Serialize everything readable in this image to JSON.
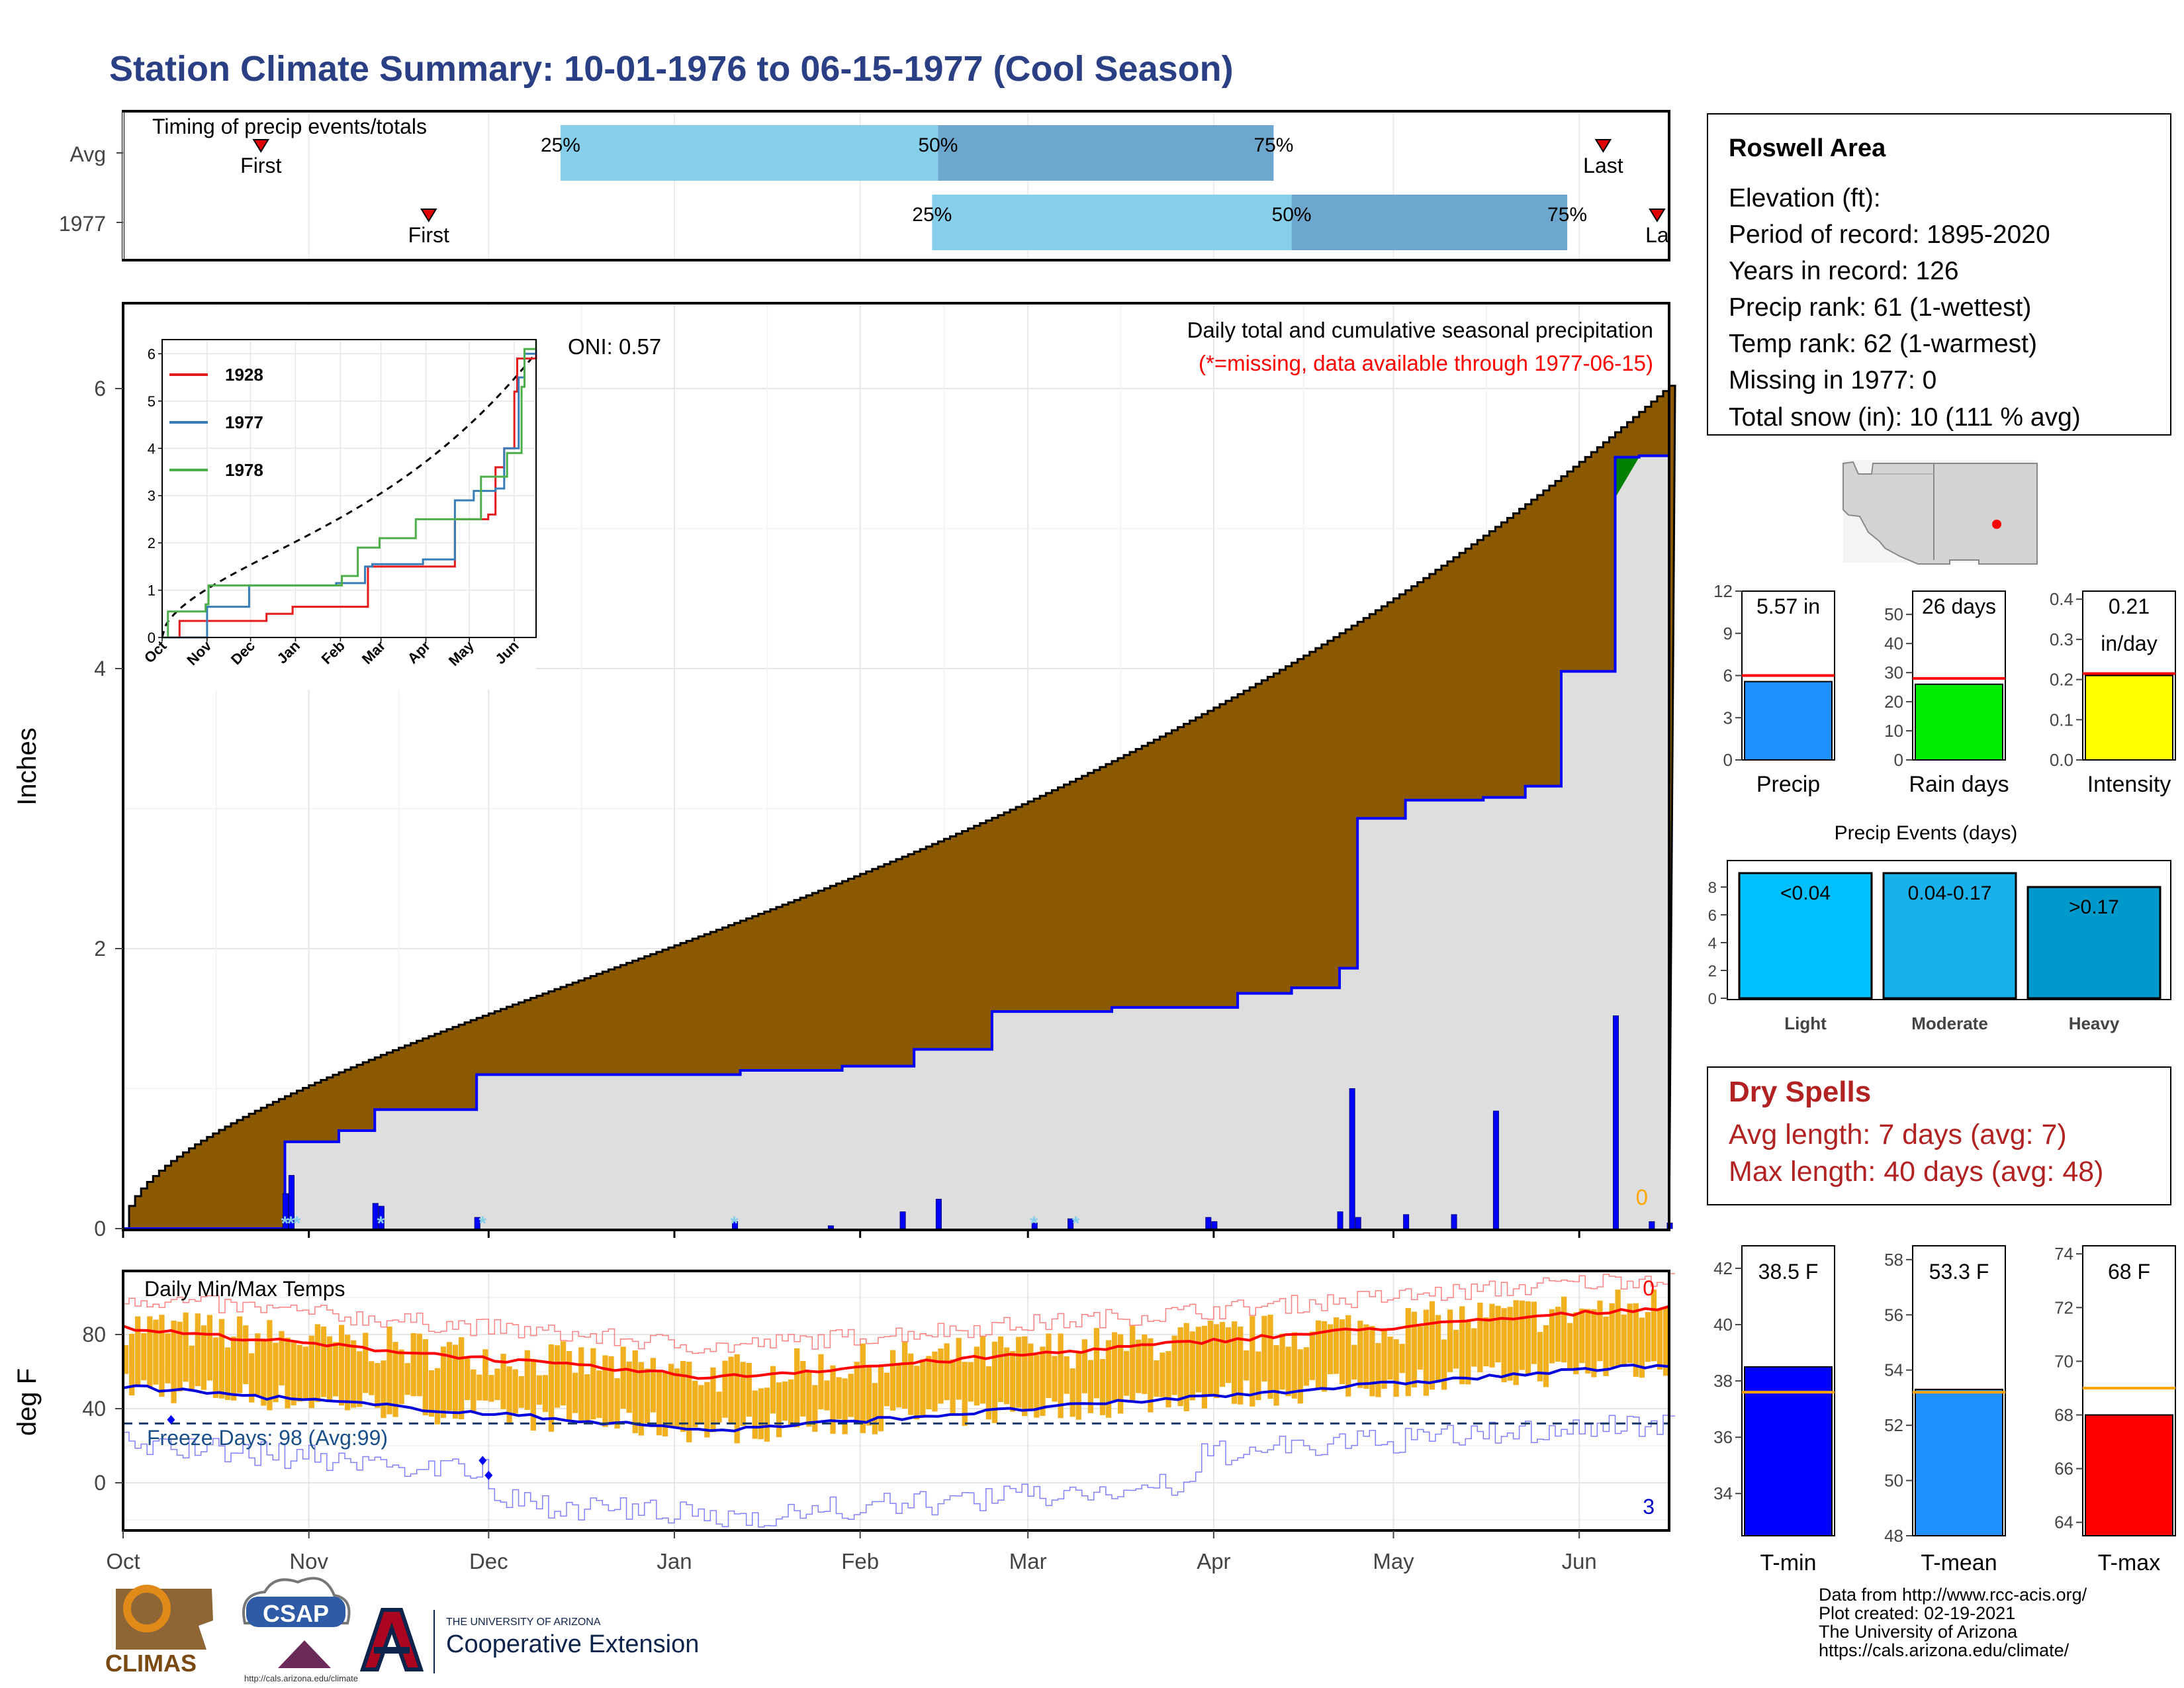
{
  "title": "Station Climate Summary: 10-01-1976 to 06-15-1977 (Cool Season)",
  "timing": {
    "title": "Timing of precip events/totals",
    "rows": [
      {
        "label": "Avg",
        "first": "Oct 24",
        "p25": "Dec 13",
        "p50": "Feb 14",
        "p75": "Apr 11",
        "last": "Jun 5",
        "first_label": "First",
        "p25_label": "25%",
        "p50_label": "50%",
        "p75_label": "75%",
        "last_label": "Last"
      },
      {
        "label": "1977",
        "first": "Nov 21",
        "p25": "Feb 13",
        "p50": "Apr 14",
        "p75": "May 30",
        "last": "Jun 14",
        "first_label": "First",
        "p25_label": "25%",
        "p50_label": "50%",
        "p75_label": "75%",
        "last_label": "La"
      }
    ],
    "colors": {
      "light": "#87ceeb",
      "dark": "#6ea7cd",
      "marker": "#e00000"
    }
  },
  "precip_panel": {
    "ylabel": "Inches",
    "oni": "ONI: 0.57",
    "note1": "Daily total and cumulative seasonal precipitation",
    "note2": "(*=missing, data available through 1977-06-15)",
    "missing_count": "0",
    "yticks": [
      "0",
      "2",
      "4",
      "6"
    ],
    "colors": {
      "deficit": "#8b5a00",
      "surplus": "#008000",
      "observed_fill": "#dedede",
      "line": "#0000ff",
      "snow": "#87ceeb"
    }
  },
  "inset": {
    "xticks": [
      "Oct",
      "Nov",
      "Dec",
      "Jan",
      "Feb",
      "Mar",
      "Apr",
      "May",
      "Jun"
    ],
    "yticks": [
      "0",
      "1",
      "2",
      "3",
      "4",
      "5",
      "6"
    ],
    "legend": [
      {
        "label": "1928",
        "color": "#e41a1c"
      },
      {
        "label": "1977",
        "color": "#377eb8"
      },
      {
        "label": "1978",
        "color": "#4daf4a"
      }
    ]
  },
  "temp_panel": {
    "title": "Daily Min/Max Temps",
    "ylabel": "deg F",
    "freeze": "Freeze Days: 98 (Avg:99)",
    "count_hot": "0",
    "count_cold": "3",
    "yticks": [
      "0",
      "40",
      "80"
    ],
    "colors": {
      "bars": "#f0b020",
      "max_avg": "#ff0000",
      "min_avg": "#0000dd",
      "record_high": "#ff8080",
      "record_low": "#8080ff",
      "freeze": "#1a3a6a"
    }
  },
  "xaxis": [
    "Oct",
    "Nov",
    "Dec",
    "Jan",
    "Feb",
    "Mar",
    "Apr",
    "May",
    "Jun"
  ],
  "info_box": {
    "station": "Roswell Area",
    "lines": [
      "Elevation (ft):",
      "Period of record: 1895-2020",
      "Years in record: 126",
      "Precip rank: 61 (1-wettest)",
      "Temp rank: 62 (1-warmest)",
      "Missing in 1977: 0",
      "Total snow (in): 10 (111 % avg)"
    ]
  },
  "mini_bars": [
    {
      "label": "Precip",
      "value_label": "5.57 in",
      "value": 5.57,
      "avg": 6.0,
      "ymin": 0,
      "ymax": 12,
      "yticks": [
        "0",
        "3",
        "6",
        "9",
        "12"
      ],
      "tickvals": [
        0,
        3,
        6,
        9,
        12
      ],
      "color": "#1e90ff",
      "avg_color": "#ff0000"
    },
    {
      "label": "Rain days",
      "value_label": "26 days",
      "value": 26,
      "avg": 28,
      "ymin": 0,
      "ymax": 58,
      "yticks": [
        "0",
        "10",
        "20",
        "30",
        "40",
        "50"
      ],
      "tickvals": [
        0,
        10,
        20,
        30,
        40,
        50
      ],
      "color": "#00ee00",
      "avg_color": "#ff0000"
    },
    {
      "label": "Intensity",
      "value_label": "0.21",
      "value_label2": "in/day",
      "value": 0.21,
      "avg": 0.215,
      "ymin": 0,
      "ymax": 0.42,
      "yticks": [
        "0.0",
        "0.1",
        "0.2",
        "0.3",
        "0.4"
      ],
      "tickvals": [
        0,
        0.1,
        0.2,
        0.3,
        0.4
      ],
      "color": "#ffff00",
      "avg_color": "#ff0000"
    }
  ],
  "events": {
    "title": "Precip Events (days)",
    "yticks": [
      "0",
      "2",
      "4",
      "6",
      "8"
    ],
    "bars": [
      {
        "label": "Light",
        "value_label": "<0.04",
        "value": 9,
        "color": "#00bfff"
      },
      {
        "label": "Moderate",
        "value_label": "0.04-0.17",
        "value": 9,
        "color": "#1ab0ea"
      },
      {
        "label": "Heavy",
        "value_label": ">0.17",
        "value": 8,
        "color": "#0099cc"
      }
    ]
  },
  "dry_spells": {
    "title": "Dry Spells",
    "avg": "Avg length: 7 days (avg: 7)",
    "max": "Max length: 40 days (avg: 48)"
  },
  "temp_bars": [
    {
      "label": "T-min",
      "value_label": "38.5 F",
      "value": 38.5,
      "avg": 37.6,
      "ymin": 32.5,
      "ymax": 42.8,
      "yticks": [
        "34",
        "36",
        "38",
        "40",
        "42"
      ],
      "tickvals": [
        34,
        36,
        38,
        40,
        42
      ],
      "color": "#0000ff"
    },
    {
      "label": "T-mean",
      "value_label": "53.3 F",
      "value": 53.3,
      "avg": 53.2,
      "ymin": 48,
      "ymax": 58.5,
      "yticks": [
        "48",
        "50",
        "52",
        "54",
        "56",
        "58"
      ],
      "tickvals": [
        48,
        50,
        52,
        54,
        56,
        58
      ],
      "color": "#1e90ff"
    },
    {
      "label": "T-max",
      "value_label": "68 F",
      "value": 68,
      "avg": 69,
      "ymin": 63.5,
      "ymax": 74.3,
      "yticks": [
        "64",
        "66",
        "68",
        "70",
        "72",
        "74"
      ],
      "tickvals": [
        64,
        66,
        68,
        70,
        72,
        74
      ],
      "color": "#ff0000"
    }
  ],
  "footer": {
    "lines": [
      "Data from http://www.rcc-acis.org/",
      "Plot created: 02-19-2021",
      "The University of Arizona",
      "https://cals.arizona.edu/climate/"
    ],
    "climas": "CLIMAS",
    "csap": "CSAP",
    "csap_url": "http://cals.arizona.edu/climate",
    "ua_line1": "THE UNIVERSITY OF ARIZONA",
    "ua_line2": "Cooperative Extension"
  }
}
